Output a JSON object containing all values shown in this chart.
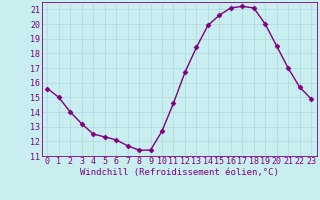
{
  "x": [
    0,
    1,
    2,
    3,
    4,
    5,
    6,
    7,
    8,
    9,
    10,
    11,
    12,
    13,
    14,
    15,
    16,
    17,
    18,
    19,
    20,
    21,
    22,
    23
  ],
  "y": [
    15.6,
    15.0,
    14.0,
    13.2,
    12.5,
    12.3,
    12.1,
    11.7,
    11.4,
    11.4,
    12.7,
    14.6,
    16.7,
    18.4,
    19.9,
    20.6,
    21.1,
    21.2,
    21.1,
    20.0,
    18.5,
    17.0,
    15.7,
    14.9
  ],
  "line_color": "#800080",
  "marker": "D",
  "markersize": 2.5,
  "linewidth": 1.0,
  "xlabel": "Windchill (Refroidissement éolien,°C)",
  "ylabel": "",
  "xlim": [
    -0.5,
    23.5
  ],
  "ylim": [
    11,
    21.5
  ],
  "yticks": [
    11,
    12,
    13,
    14,
    15,
    16,
    17,
    18,
    19,
    20,
    21
  ],
  "xticks": [
    0,
    1,
    2,
    3,
    4,
    5,
    6,
    7,
    8,
    9,
    10,
    11,
    12,
    13,
    14,
    15,
    16,
    17,
    18,
    19,
    20,
    21,
    22,
    23
  ],
  "bg_color": "#c8eef0",
  "grid_color": "#b0d8dc",
  "tick_color": "#800080",
  "label_color": "#800080",
  "axis_color": "#800080",
  "xlabel_fontsize": 6.5,
  "tick_fontsize": 6.0
}
